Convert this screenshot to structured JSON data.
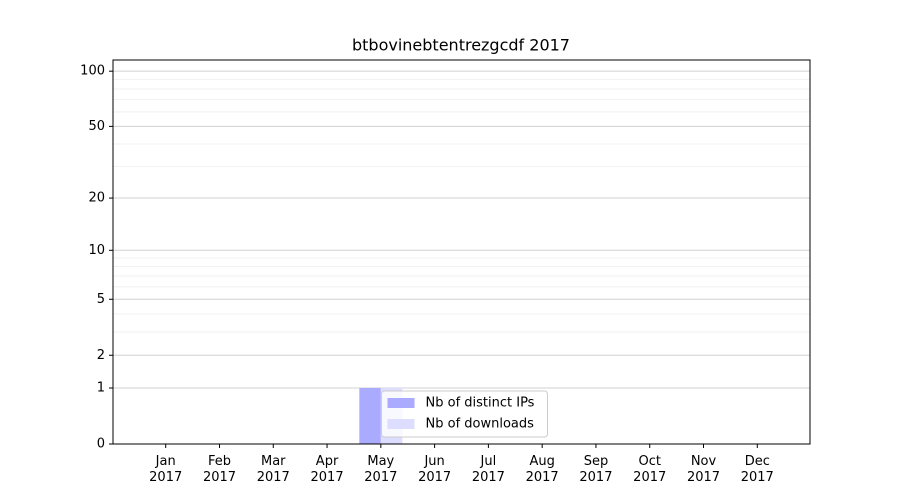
{
  "chart_data": {
    "type": "bar",
    "title": "btbovinebtentrezgcdf 2017",
    "categories": [
      "Jan 2017",
      "Feb 2017",
      "Mar 2017",
      "Apr 2017",
      "May 2017",
      "Jun 2017",
      "Jul 2017",
      "Aug 2017",
      "Sep 2017",
      "Oct 2017",
      "Nov 2017",
      "Dec 2017"
    ],
    "series": [
      {
        "name": "Nb of distinct IPs",
        "color": "#aaaaff",
        "values": [
          0,
          0,
          0,
          0,
          1,
          0,
          0,
          0,
          0,
          0,
          0,
          0
        ]
      },
      {
        "name": "Nb of downloads",
        "color": "#ddddff",
        "values": [
          0,
          0,
          0,
          0,
          1,
          0,
          0,
          0,
          0,
          0,
          0,
          0
        ]
      }
    ],
    "yscale": "log1p",
    "ylim": [
      0,
      115
    ],
    "yticks": [
      0,
      1,
      2,
      5,
      10,
      20,
      50,
      100
    ],
    "yminorticks": [
      3,
      4,
      6,
      7,
      8,
      9,
      30,
      40,
      60,
      70,
      80,
      90
    ],
    "grid": true,
    "legend": "lower center"
  }
}
